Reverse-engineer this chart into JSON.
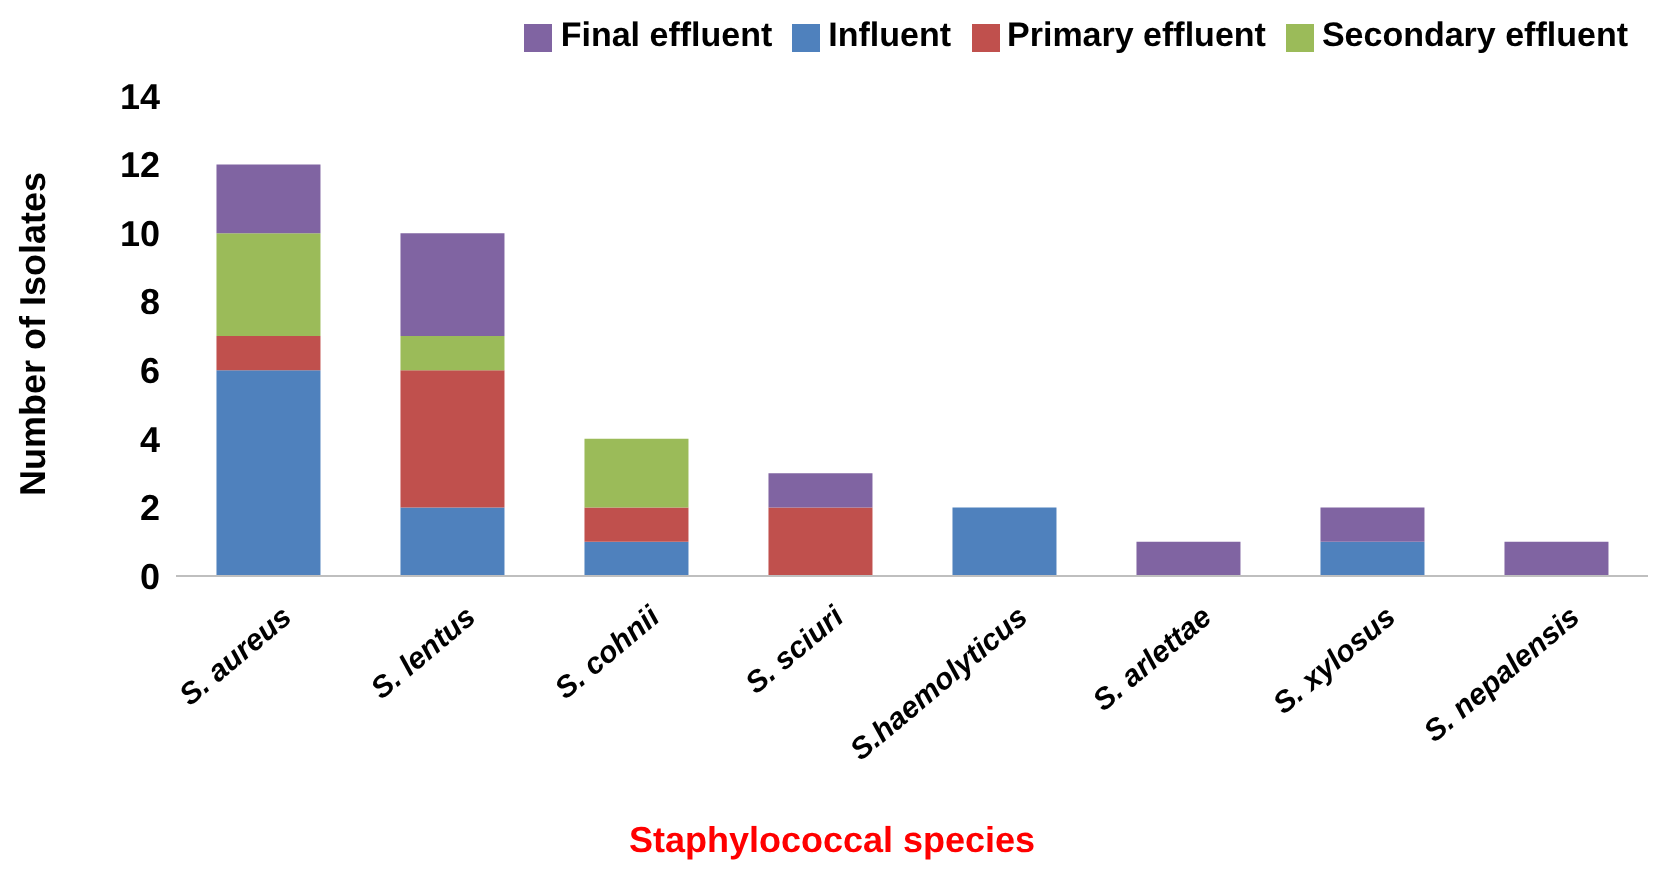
{
  "chart_data": {
    "type": "bar",
    "stacked": true,
    "xlabel": "Staphylococcal species",
    "ylabel": "Number of Isolates",
    "categories": [
      "S. aureus",
      "S. lentus",
      "S. cohnii",
      "S. sciuri",
      "S.haemolyticus",
      "S. arlettae",
      "S. xylosus",
      "S. nepalensis"
    ],
    "series": [
      {
        "name": "Influent",
        "color": "#4f81bd",
        "values": [
          6,
          2,
          1,
          0,
          2,
          0,
          1,
          0
        ]
      },
      {
        "name": "Primary effluent",
        "color": "#c0504d",
        "values": [
          1,
          4,
          1,
          2,
          0,
          0,
          0,
          0
        ]
      },
      {
        "name": "Secondary effluent",
        "color": "#9bbb59",
        "values": [
          3,
          1,
          2,
          0,
          0,
          0,
          0,
          0
        ]
      },
      {
        "name": "Final effluent",
        "color": "#8064a2",
        "values": [
          2,
          3,
          0,
          1,
          0,
          1,
          1,
          1
        ]
      }
    ],
    "ylim": [
      0,
      14
    ],
    "yticks": [
      0,
      2,
      4,
      6,
      8,
      10,
      12,
      14
    ],
    "grid": false,
    "legend": "top"
  }
}
